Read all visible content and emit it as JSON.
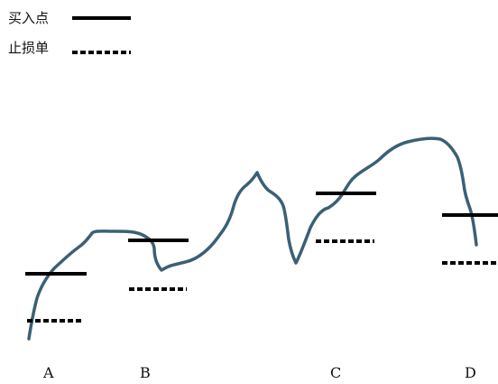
{
  "legend": {
    "buy_label": "买入点",
    "stop_label": "止损单"
  },
  "points": [
    {
      "id": "A",
      "label": "A"
    },
    {
      "id": "B",
      "label": "B"
    },
    {
      "id": "C",
      "label": "C"
    },
    {
      "id": "D",
      "label": "D"
    }
  ],
  "colors": {
    "price_line": "#3b6075",
    "level_line": "#000000",
    "text": "#111111"
  }
}
